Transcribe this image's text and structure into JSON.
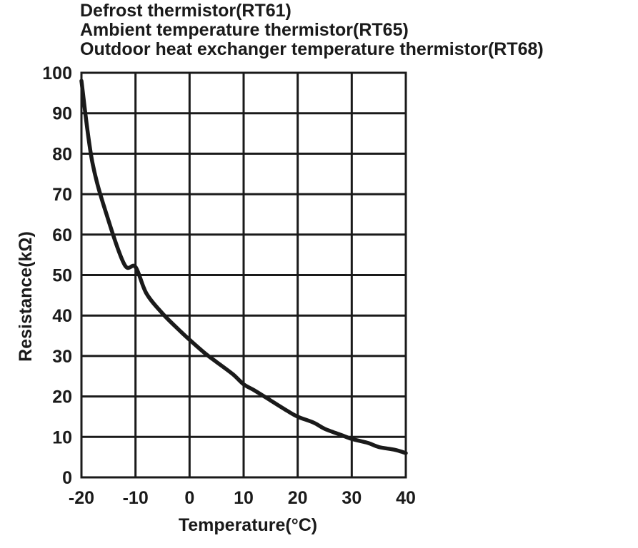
{
  "chart_data": {
    "type": "line",
    "title_lines": [
      "Defrost thermistor(RT61)",
      "Ambient temperature thermistor(RT65)",
      "Outdoor heat exchanger temperature thermistor(RT68)"
    ],
    "xlabel": "Temperature(°C)",
    "ylabel": "Resistance(kΩ)",
    "xlim": [
      -20,
      40
    ],
    "ylim": [
      0,
      100
    ],
    "x_ticks": [
      -20,
      -10,
      0,
      10,
      20,
      30,
      40
    ],
    "y_ticks": [
      0,
      10,
      20,
      30,
      40,
      50,
      60,
      70,
      80,
      90,
      100
    ],
    "x_tick_labels": [
      "-20",
      "-10",
      "0",
      "10",
      "20",
      "30",
      "40"
    ],
    "y_tick_labels": [
      "0",
      "10",
      "20",
      "30",
      "40",
      "50",
      "60",
      "70",
      "80",
      "90",
      "100"
    ],
    "grid": true,
    "legend": "none",
    "colors": {
      "line": "#1a1a1a",
      "grid": "#1a1a1a",
      "background": "#ffffff"
    },
    "series": [
      {
        "x": [
          -20,
          -18,
          -15,
          -12,
          -10,
          -8,
          -5,
          -2,
          0,
          3,
          5,
          8,
          10,
          12,
          15,
          18,
          20,
          23,
          25,
          28,
          30,
          33,
          35,
          38,
          40
        ],
        "values": [
          98,
          78,
          63.5,
          52.5,
          52,
          45.5,
          40.5,
          36.5,
          34,
          30.5,
          28.5,
          25.5,
          23,
          21.5,
          19,
          16.5,
          15,
          13.5,
          12,
          10.5,
          9.5,
          8.5,
          7.5,
          6.8,
          6
        ]
      }
    ]
  }
}
